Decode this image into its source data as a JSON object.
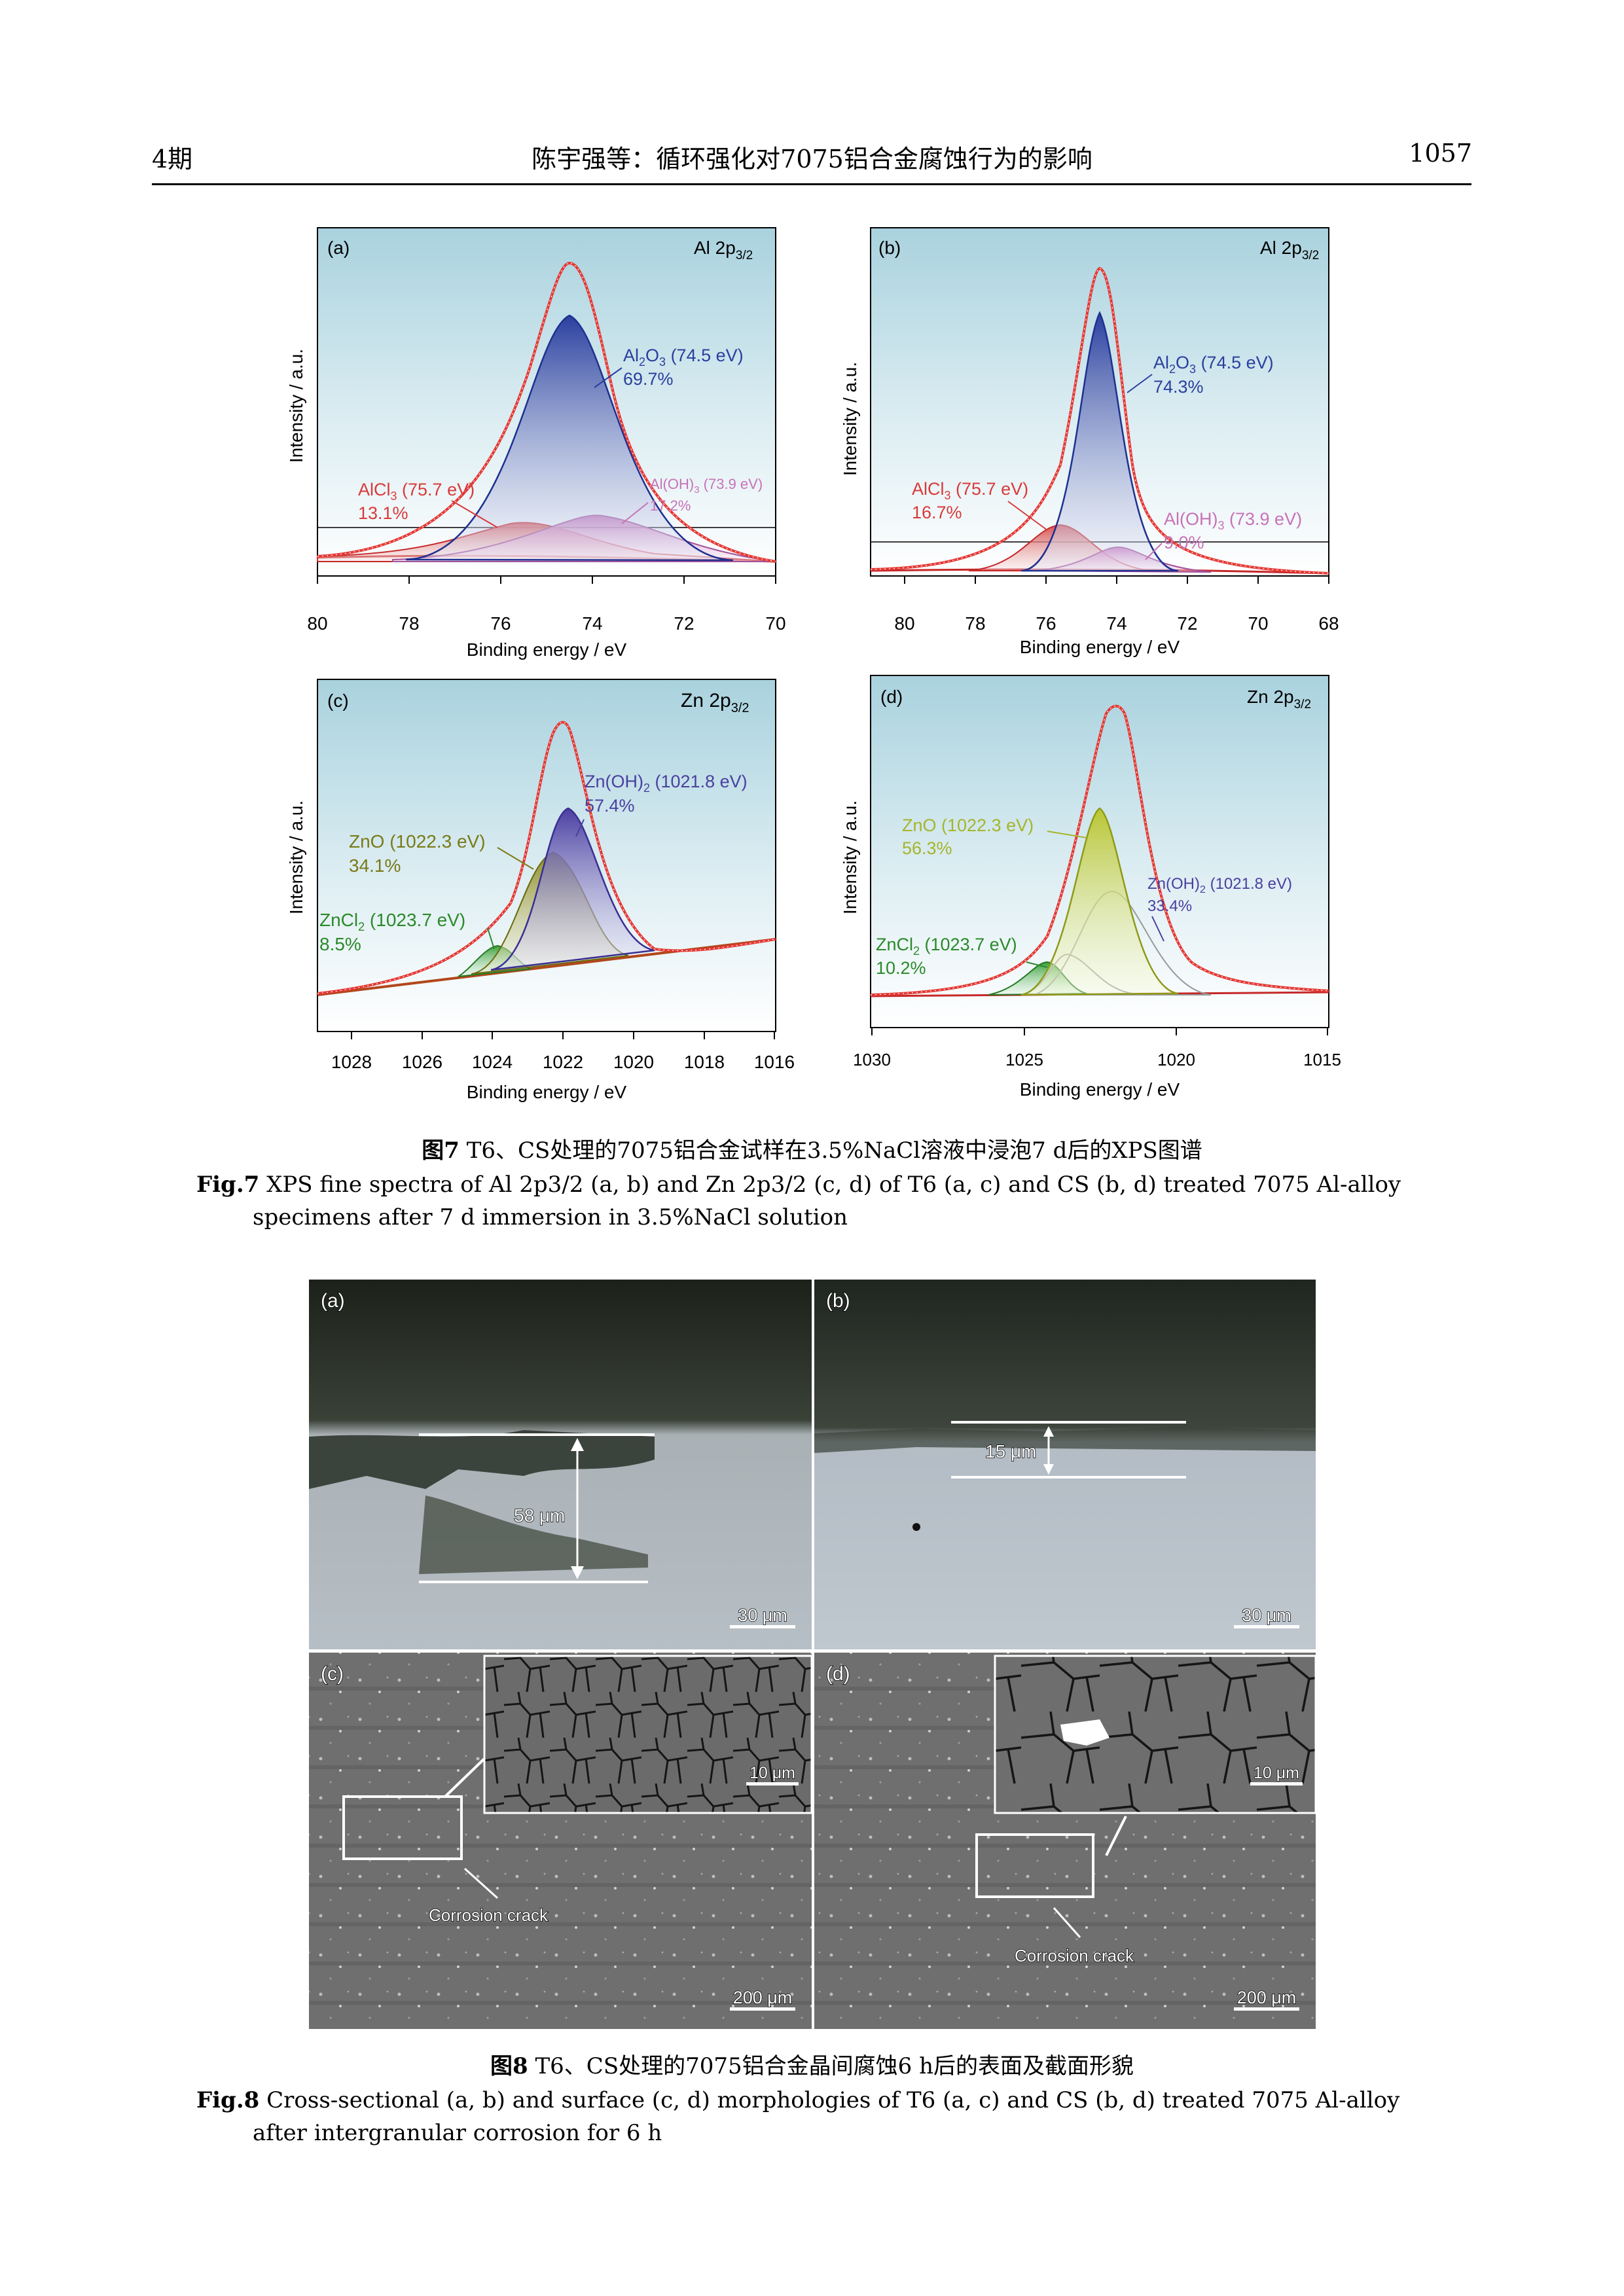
{
  "header": {
    "issue": "4期",
    "title": "陈宇强等：循环强化对7075铝合金腐蚀行为的影响",
    "page": "1057"
  },
  "fig7": {
    "caption_cn_label": "图7",
    "caption_cn": " T6、CS处理的7075铝合金试样在3.5%NaCl溶液中浸泡7 d后的XPS图谱",
    "caption_en_label": "Fig.7",
    "caption_en": " XPS fine spectra of Al 2p3/2 (a, b) and Zn 2p3/2 (c, d) of T6 (a, c) and CS (b, d) treated 7075 Al-alloy specimens after 7 d immersion in 3.5%NaCl solution",
    "ylabel": "Intensity / a.u.",
    "xlabel": "Binding energy / eV"
  },
  "chart_data": [
    {
      "type": "line",
      "panel": "(a)",
      "title": "Al 2p3/2",
      "xlabel": "Binding energy / eV",
      "ylabel": "Intensity / a.u.",
      "xlim": [
        80,
        70
      ],
      "xticks": [
        80,
        78,
        76,
        74,
        72,
        70
      ],
      "peaks": [
        {
          "name": "Al2O3 (74.5 eV)",
          "center": 74.5,
          "percent": "69.7%",
          "color": "#2a3f9e"
        },
        {
          "name": "AlCl3 (75.7 eV)",
          "center": 75.7,
          "percent": "13.1%",
          "color": "#d93a3a"
        },
        {
          "name": "Al(OH)3 (73.9 eV)",
          "center": 73.9,
          "percent": "17.2%",
          "color": "#c772b8"
        }
      ]
    },
    {
      "type": "line",
      "panel": "(b)",
      "title": "Al 2p3/2",
      "xlabel": "Binding energy / eV",
      "ylabel": "Intensity / a.u.",
      "xlim": [
        80,
        68
      ],
      "xticks": [
        80,
        78,
        76,
        74,
        72,
        70,
        68
      ],
      "peaks": [
        {
          "name": "Al2O3 (74.5 eV)",
          "center": 74.5,
          "percent": "74.3%",
          "color": "#2a3f9e"
        },
        {
          "name": "AlCl3 (75.7 eV)",
          "center": 75.7,
          "percent": "16.7%",
          "color": "#d93a3a"
        },
        {
          "name": "Al(OH)3 (73.9 eV)",
          "center": 73.9,
          "percent": "9.0%",
          "color": "#c772b8"
        }
      ]
    },
    {
      "type": "line",
      "panel": "(c)",
      "title": "Zn 2p3/2",
      "xlabel": "Binding energy / eV",
      "ylabel": "Intensity / a.u.",
      "xlim": [
        1029,
        1016
      ],
      "xticks": [
        1028,
        1026,
        1024,
        1022,
        1020,
        1018,
        1016
      ],
      "peaks": [
        {
          "name": "Zn(OH)2 (1021.8 eV)",
          "center": 1021.8,
          "percent": "57.4%",
          "color": "#4a3fa0"
        },
        {
          "name": "ZnO (1022.3 eV)",
          "center": 1022.3,
          "percent": "34.1%",
          "color": "#7a7a16"
        },
        {
          "name": "ZnCl2 (1023.7 eV)",
          "center": 1023.7,
          "percent": "8.5%",
          "color": "#2a8a2a"
        }
      ]
    },
    {
      "type": "line",
      "panel": "(d)",
      "title": "Zn 2p3/2",
      "xlabel": "Binding energy / eV",
      "ylabel": "Intensity / a.u.",
      "xlim": [
        1030,
        1015
      ],
      "xticks": [
        1030,
        1025,
        1020,
        1015
      ],
      "peaks": [
        {
          "name": "ZnO (1022.3 eV)",
          "center": 1022.3,
          "percent": "56.3%",
          "color": "#a6b52a"
        },
        {
          "name": "Zn(OH)2 (1021.8 eV)",
          "center": 1021.8,
          "percent": "33.4%",
          "color": "#4a3fa0"
        },
        {
          "name": "ZnCl2 (1023.7 eV)",
          "center": 1023.7,
          "percent": "10.2%",
          "color": "#2a8a2a"
        }
      ]
    }
  ],
  "fig8": {
    "panels": {
      "a": "(a)",
      "b": "(b)",
      "c": "(c)",
      "d": "(d)"
    },
    "depth_a": "58 μm",
    "depth_b": "15 μm",
    "scale_cross": "30 μm",
    "scale_surface": "200 μm",
    "scale_inset": "10 μm",
    "crack_label": "Corrosion crack",
    "caption_cn_label": "图8",
    "caption_cn": " T6、CS处理的7075铝合金晶间腐蚀6 h后的表面及截面形貌",
    "caption_en_label": "Fig.8",
    "caption_en": " Cross-sectional (a, b) and surface (c, d) morphologies of T6 (a, c) and CS (b, d) treated 7075 Al-alloy after intergranular corrosion for 6 h"
  }
}
